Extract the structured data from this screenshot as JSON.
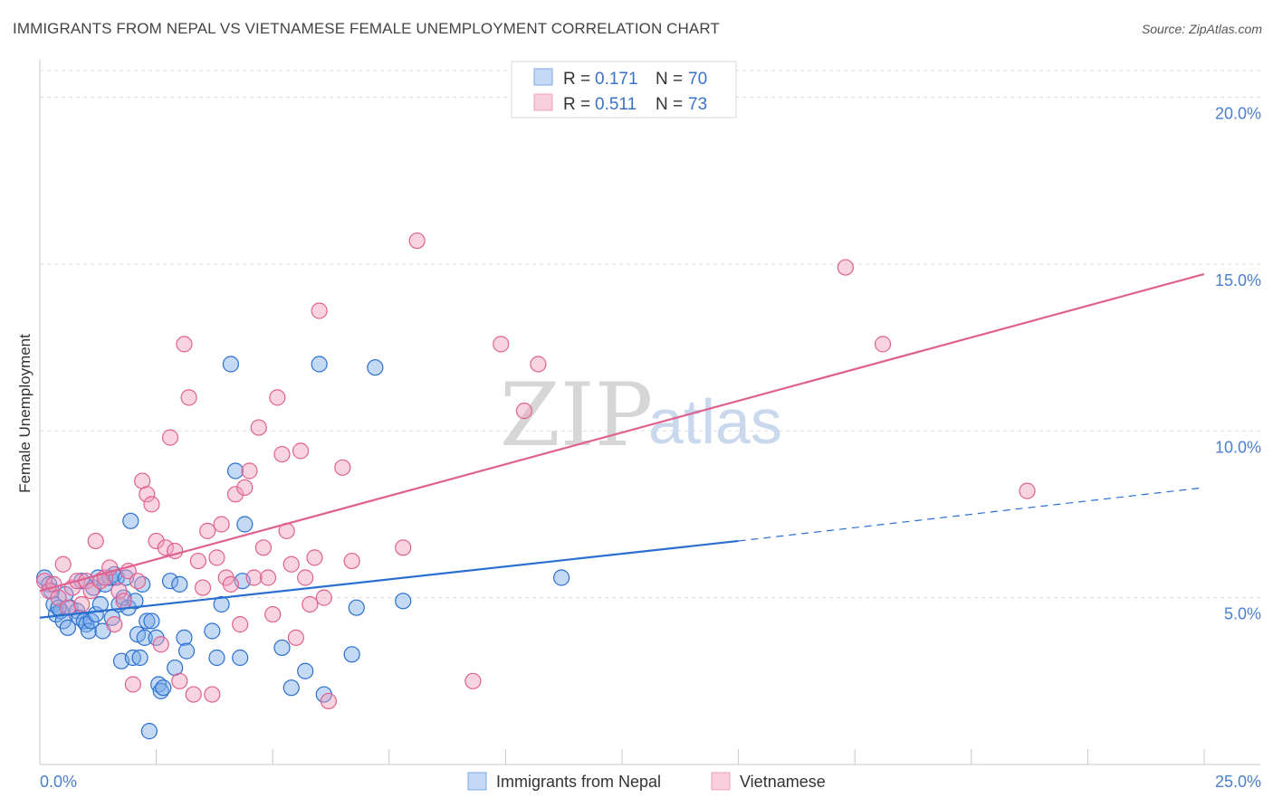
{
  "header": {
    "title": "IMMIGRANTS FROM NEPAL VS VIETNAMESE FEMALE UNEMPLOYMENT CORRELATION CHART",
    "source": "Source: ZipAtlas.com"
  },
  "watermark": {
    "zip": "ZIP",
    "atlas": "atlas"
  },
  "legend": {
    "rows": [
      {
        "r_label": "R = ",
        "r_value": "0.171",
        "n_label": "N = ",
        "n_value": "70"
      },
      {
        "r_label": "R = ",
        "r_value": "0.511",
        "n_label": "N = ",
        "n_value": "73"
      }
    ]
  },
  "chart_data": {
    "type": "scatter",
    "title": "IMMIGRANTS FROM NEPAL VS VIETNAMESE FEMALE UNEMPLOYMENT CORRELATION CHART",
    "xlabel": "",
    "ylabel": "Female Unemployment",
    "xlim": [
      0,
      25
    ],
    "ylim": [
      0,
      20.8
    ],
    "y_ticks": [
      5,
      10,
      15,
      20
    ],
    "y_tick_labels": [
      "5.0%",
      "10.0%",
      "15.0%",
      "20.0%"
    ],
    "x_tick_labels": [
      "0.0%",
      "25.0%"
    ],
    "grid": true,
    "colors": {
      "nepal": "#7aaae6",
      "vietnamese": "#f0a0bd",
      "nepal_line": "#2a6fd0",
      "vietnamese_line": "#e06090"
    },
    "series": [
      {
        "name": "Immigrants from Nepal",
        "R": 0.171,
        "N": 70,
        "trend": {
          "x0": 0,
          "y0": 4.4,
          "x1": 15,
          "y1": 6.7,
          "dash_x1": 25,
          "dash_y1": 8.3
        },
        "points": [
          [
            0.1,
            5.6
          ],
          [
            0.2,
            5.4
          ],
          [
            0.3,
            4.8
          ],
          [
            0.35,
            4.5
          ],
          [
            0.45,
            4.6
          ],
          [
            0.5,
            4.3
          ],
          [
            0.55,
            5.1
          ],
          [
            0.6,
            4.1
          ],
          [
            0.65,
            4.7
          ],
          [
            0.8,
            4.6
          ],
          [
            0.85,
            4.4
          ],
          [
            0.9,
            5.5
          ],
          [
            0.95,
            4.3
          ],
          [
            1.0,
            4.2
          ],
          [
            1.05,
            4.0
          ],
          [
            1.1,
            4.3
          ],
          [
            1.15,
            5.3
          ],
          [
            1.2,
            4.5
          ],
          [
            1.25,
            5.6
          ],
          [
            1.3,
            4.8
          ],
          [
            1.35,
            4.0
          ],
          [
            1.4,
            5.4
          ],
          [
            1.5,
            5.6
          ],
          [
            1.55,
            4.4
          ],
          [
            1.6,
            5.7
          ],
          [
            1.65,
            5.6
          ],
          [
            1.7,
            4.8
          ],
          [
            1.75,
            3.1
          ],
          [
            1.8,
            5.0
          ],
          [
            1.85,
            5.6
          ],
          [
            1.9,
            4.7
          ],
          [
            1.95,
            7.3
          ],
          [
            2.0,
            3.2
          ],
          [
            2.05,
            4.9
          ],
          [
            2.1,
            3.9
          ],
          [
            2.15,
            3.2
          ],
          [
            2.2,
            5.4
          ],
          [
            2.25,
            3.8
          ],
          [
            2.3,
            4.3
          ],
          [
            2.35,
            1.0
          ],
          [
            2.4,
            4.3
          ],
          [
            2.5,
            3.8
          ],
          [
            2.55,
            2.4
          ],
          [
            2.6,
            2.2
          ],
          [
            2.65,
            2.3
          ],
          [
            2.8,
            5.5
          ],
          [
            2.9,
            2.9
          ],
          [
            3.0,
            5.4
          ],
          [
            3.1,
            3.8
          ],
          [
            3.15,
            3.4
          ],
          [
            3.7,
            4.0
          ],
          [
            3.8,
            3.2
          ],
          [
            3.9,
            4.8
          ],
          [
            4.1,
            12.0
          ],
          [
            4.2,
            8.8
          ],
          [
            4.3,
            3.2
          ],
          [
            4.35,
            5.5
          ],
          [
            4.4,
            7.2
          ],
          [
            5.2,
            3.5
          ],
          [
            5.4,
            2.3
          ],
          [
            5.7,
            2.8
          ],
          [
            6.0,
            12.0
          ],
          [
            6.1,
            2.1
          ],
          [
            6.7,
            3.3
          ],
          [
            6.8,
            4.7
          ],
          [
            7.2,
            11.9
          ],
          [
            7.8,
            4.9
          ],
          [
            11.2,
            5.6
          ],
          [
            0.25,
            5.2
          ],
          [
            0.4,
            4.7
          ]
        ]
      },
      {
        "name": "Vietnamese",
        "R": 0.511,
        "N": 73,
        "trend": {
          "x0": 0,
          "y0": 5.2,
          "x1": 25,
          "y1": 14.7
        },
        "points": [
          [
            0.1,
            5.5
          ],
          [
            0.2,
            5.2
          ],
          [
            0.3,
            5.4
          ],
          [
            0.4,
            5.0
          ],
          [
            0.5,
            6.0
          ],
          [
            0.6,
            4.7
          ],
          [
            0.7,
            5.3
          ],
          [
            0.8,
            5.5
          ],
          [
            0.9,
            4.8
          ],
          [
            1.0,
            5.5
          ],
          [
            1.1,
            5.2
          ],
          [
            1.2,
            6.7
          ],
          [
            1.3,
            5.5
          ],
          [
            1.4,
            5.6
          ],
          [
            1.5,
            5.9
          ],
          [
            1.6,
            4.2
          ],
          [
            1.7,
            5.2
          ],
          [
            1.8,
            4.9
          ],
          [
            1.9,
            5.8
          ],
          [
            2.0,
            2.4
          ],
          [
            2.1,
            5.5
          ],
          [
            2.2,
            8.5
          ],
          [
            2.3,
            8.1
          ],
          [
            2.4,
            7.8
          ],
          [
            2.5,
            6.7
          ],
          [
            2.6,
            3.6
          ],
          [
            2.7,
            6.5
          ],
          [
            2.8,
            9.8
          ],
          [
            2.9,
            6.4
          ],
          [
            3.0,
            2.5
          ],
          [
            3.1,
            12.6
          ],
          [
            3.2,
            11.0
          ],
          [
            3.3,
            2.1
          ],
          [
            3.4,
            6.1
          ],
          [
            3.5,
            5.3
          ],
          [
            3.6,
            7.0
          ],
          [
            3.7,
            2.1
          ],
          [
            3.8,
            6.2
          ],
          [
            3.9,
            7.2
          ],
          [
            4.0,
            5.6
          ],
          [
            4.1,
            5.4
          ],
          [
            4.2,
            8.1
          ],
          [
            4.3,
            4.2
          ],
          [
            4.4,
            8.3
          ],
          [
            4.5,
            8.8
          ],
          [
            4.6,
            5.6
          ],
          [
            4.7,
            10.1
          ],
          [
            4.8,
            6.5
          ],
          [
            4.9,
            5.6
          ],
          [
            5.0,
            4.5
          ],
          [
            5.1,
            11.0
          ],
          [
            5.2,
            9.3
          ],
          [
            5.3,
            7.0
          ],
          [
            5.4,
            6.0
          ],
          [
            5.5,
            3.8
          ],
          [
            5.6,
            9.4
          ],
          [
            5.7,
            5.6
          ],
          [
            5.8,
            4.8
          ],
          [
            5.9,
            6.2
          ],
          [
            6.0,
            13.6
          ],
          [
            6.1,
            5.0
          ],
          [
            6.2,
            1.9
          ],
          [
            6.5,
            8.9
          ],
          [
            6.7,
            6.1
          ],
          [
            7.8,
            6.5
          ],
          [
            8.1,
            15.7
          ],
          [
            9.3,
            2.5
          ],
          [
            9.9,
            12.6
          ],
          [
            10.4,
            10.6
          ],
          [
            10.7,
            12.0
          ],
          [
            17.3,
            14.9
          ],
          [
            18.1,
            12.6
          ],
          [
            21.2,
            8.2
          ]
        ]
      }
    ]
  },
  "bottom_legend": {
    "items": [
      {
        "label": "Immigrants from Nepal"
      },
      {
        "label": "Vietnamese"
      }
    ]
  }
}
